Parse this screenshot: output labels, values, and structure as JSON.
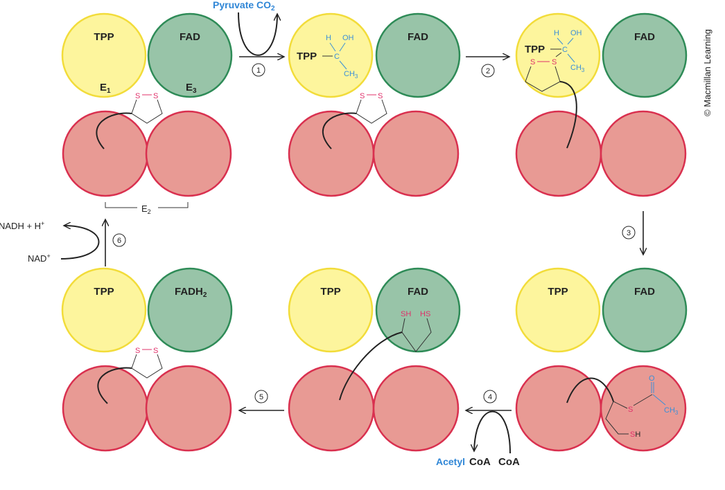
{
  "labels": {
    "tpp": "TPP",
    "fad": "FAD",
    "fadh2": "FADH",
    "fadh2_sub": "2",
    "e1": "E",
    "e1_sub": "1",
    "e2": "E",
    "e2_sub": "2",
    "e3": "E",
    "e3_sub": "3"
  },
  "chem": {
    "h": "H",
    "oh": "OH",
    "c": "C",
    "ch3": "CH",
    "ch3_sub": "3",
    "s": "S",
    "sh": "SH",
    "hs": "HS",
    "o": "O",
    "s_of_sh": "S",
    "h_of_sh": "H"
  },
  "steps": [
    "1",
    "2",
    "3",
    "4",
    "5",
    "6"
  ],
  "substrates": {
    "pyruvate": "Pyruvate",
    "co2": "CO",
    "co2_sub": "2",
    "nadh": "NADH + H",
    "nadh_sup": "+",
    "nad": "NAD",
    "nad_sup": "+",
    "acetyl": "Acetyl",
    "acetyl_coa": "CoA",
    "coa": "CoA"
  },
  "copyright": "© Macmillan Learning",
  "colors": {
    "e1_yellow": "#fdf59d",
    "e1_stroke": "#f2dc3a",
    "e3_green": "#98c4a8",
    "e3_stroke": "#2e8b57",
    "e2_red": "#e89a94",
    "e2_stroke": "#d9304f",
    "chem_blue": "#3a8fd8",
    "sulfur_pink": "#e0306a"
  }
}
